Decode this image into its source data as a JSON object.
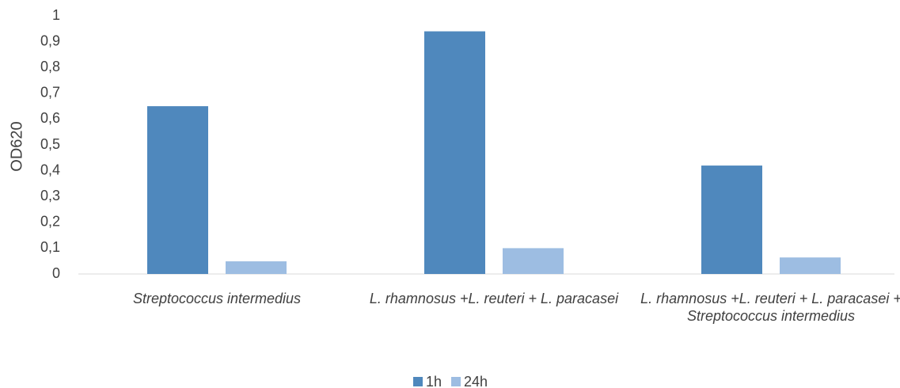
{
  "chart_data": {
    "type": "bar",
    "y_label": "OD620",
    "categories": [
      "Streptococcus intermedius",
      "L. rhamnosus +L. reuteri      + L. paracasei",
      "L. rhamnosus +L. reuteri + L. paracasei  +  Streptococcus intermedius"
    ],
    "series": [
      {
        "name": "1h",
        "color": "#4f88bd",
        "values": [
          0.65,
          0.94,
          0.42
        ]
      },
      {
        "name": "24h",
        "color": "#9dbde2",
        "values": [
          0.049,
          0.1,
          0.064
        ]
      }
    ],
    "ylim": [
      0,
      1
    ],
    "yticks": [
      0,
      {
        "value": 0.1,
        "label": "0,1"
      },
      {
        "value": 0.2,
        "label": "0,2"
      },
      {
        "value": 0.3,
        "label": "0,3"
      },
      {
        "value": 0.4,
        "label": "0,4"
      },
      {
        "value": 0.5,
        "label": "0,5"
      },
      {
        "value": 0.6,
        "label": "0,6"
      },
      {
        "value": 0.7,
        "label": "0,7"
      },
      {
        "value": 0.8,
        "label": "0,8"
      },
      {
        "value": 0.9,
        "label": "0,9"
      },
      1
    ],
    "grid": false,
    "legend": "bottom"
  }
}
